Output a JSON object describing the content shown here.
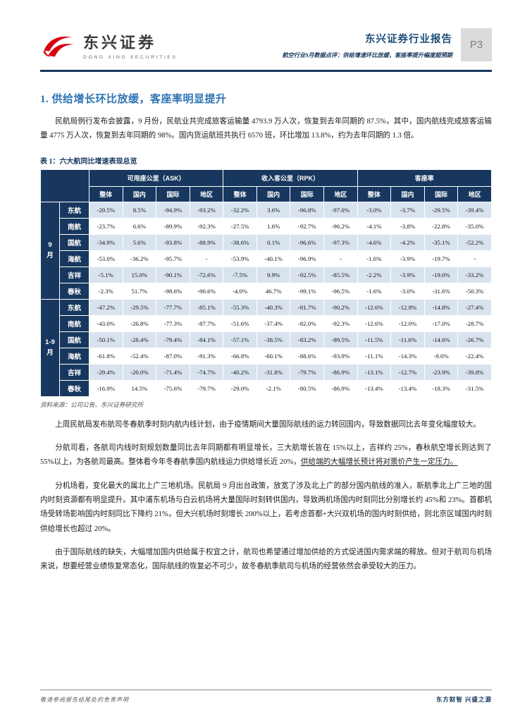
{
  "header": {
    "brand_cn": "东兴证券",
    "brand_en": "DONG XING SECURITIES",
    "report_type": "东兴证券行业报告",
    "report_subtitle": "航空行业9月数据点评：供给增速环比放缓，客座率提升幅度超预期",
    "page_number": "P3"
  },
  "section_heading": "1. 供给增长环比放缓，客座率明显提升",
  "paragraphs": {
    "p1": "民航局例行发布会披露，9 月份，民航业共完成旅客运输量 4793.9 万人次，恢复到去年同期的 87.5%，其中，国内航线完成旅客运输量 4775 万人次，恢复到去年同期的 98%。国内货运航班共执行 6570 班，环比增加 13.8%，约为去年同期的 1.3 倍。",
    "p2": "上周民航局发布航司冬春航季时刻内航内线计划，由于疫情期间大量国际航线的运力转回国内，导致数据同比去年变化幅度较大。",
    "p3_main": "分航司看，各航司内线时刻规划数量同比去年同期都有明显增长，三大航增长皆在 15%以上，吉祥约 25%，春秋航空增长则达到了 55%以上，为各航司最高。整体看今年冬春航季国内航线运力供给增长近 20%，",
    "p3_underline": "供给端的大幅增长预计将对票价产生一定压力。",
    "p4": "分机场看，变化最大的属北上广三地机场。民航局 9 月出台政策，放宽了涉及北上广的部分国内航线的准入，新航季北上广三地的国内时刻资源都有明显提升。其中浦东机场与白云机场将大量国际时刻转供国内，导致两机场国内时刻同比分别增长约 45%和 23%。首都机场受转场影响国内时刻同比下降约 21%，但大兴机场时刻增长 200%以上，若考虑首都+大兴双机场的国内时刻供给，则北京区域国内时刻供给增长也超过 20%。",
    "p5": "由于国际航线的缺失，大幅增加国内供给属于权宜之计，航司也希望通过增加供给的方式促进国内需求端的释放。但对于航司与机场来说，想要经营业绩恢复常态化，国际航线的恢复必不可少，故冬春航季航司与机场的经营依然会承受较大的压力。"
  },
  "table": {
    "title": "表 1：六大航同比增速表现总览",
    "column_groups": [
      "可用座公里（ASK）",
      "收入客公里（RPK）",
      "客座率"
    ],
    "sub_columns": [
      "整体",
      "国内",
      "国际",
      "地区"
    ],
    "row_groups": [
      {
        "label": "9\n月",
        "rows": [
          {
            "airline": "东航",
            "values": [
              "-29.5%",
              "8.5%",
              "-94.9%",
              "-93.2%",
              "-32.2%",
              "3.6%",
              "-96.8%",
              "-97.0%",
              "-3.0%",
              "-3.7%",
              "-29.5%",
              "-39.4%"
            ]
          },
          {
            "airline": "南航",
            "values": [
              "-23.7%",
              "6.6%",
              "-89.9%",
              "-92.3%",
              "-27.5%",
              "1.6%",
              "-92.7%",
              "-96.2%",
              "-4.1%",
              "-3.8%",
              "-22.8%",
              "-35.0%"
            ]
          },
          {
            "airline": "国航",
            "values": [
              "-34.9%",
              "5.6%",
              "-93.8%",
              "-88.9%",
              "-38.6%",
              "0.1%",
              "-96.6%",
              "-97.3%",
              "-4.6%",
              "-4.2%",
              "-35.1%",
              "-52.2%"
            ]
          },
          {
            "airline": "海航",
            "values": [
              "-53.0%",
              "-36.2%",
              "-95.7%",
              "-",
              "-53.9%",
              "-40.1%",
              "-96.9%",
              "-",
              "-1.6%",
              "-3.9%",
              "-19.7%",
              "-"
            ]
          },
          {
            "airline": "吉祥",
            "values": [
              "-5.1%",
              "15.0%",
              "-90.1%",
              "-72.6%",
              "-7.5%",
              "9.9%",
              "-92.5%",
              "-85.5%",
              "-2.2%",
              "-3.9%",
              "-19.0%",
              "-33.2%"
            ]
          },
          {
            "airline": "春秋",
            "values": [
              "-2.3%",
              "51.7%",
              "-98.6%",
              "-90.6%",
              "-4.0%",
              "46.7%",
              "-99.1%",
              "-96.5%",
              "-1.6%",
              "-3.0%",
              "-31.6%",
              "-50.3%"
            ]
          }
        ]
      },
      {
        "label": "1-9\n月",
        "rows": [
          {
            "airline": "东航",
            "values": [
              "-47.2%",
              "-29.5%",
              "-77.7%",
              "-85.1%",
              "-55.3%",
              "-40.3%",
              "-81.7%",
              "-90.2%",
              "-12.6%",
              "-12.8%",
              "-14.8%",
              "-27.4%"
            ]
          },
          {
            "airline": "南航",
            "values": [
              "-43.0%",
              "-26.8%",
              "-77.3%",
              "-87.7%",
              "-51.6%",
              "-37.4%",
              "-82.0%",
              "-92.3%",
              "-12.6%",
              "-12.0%",
              "-17.0%",
              "-28.7%"
            ]
          },
          {
            "airline": "国航",
            "values": [
              "-50.1%",
              "-28.4%",
              "-79.4%",
              "-84.1%",
              "-57.1%",
              "-38.5%",
              "-83.2%",
              "-89.5%",
              "-11.5%",
              "-11.6%",
              "-14.6%",
              "-26.7%"
            ]
          },
          {
            "airline": "海航",
            "values": [
              "-61.8%",
              "-52.4%",
              "-87.0%",
              "-91.3%",
              "-66.8%",
              "-60.1%",
              "-88.6%",
              "-93.9%",
              "-11.1%",
              "-14.3%",
              "-9.0%",
              "-22.4%"
            ]
          },
          {
            "airline": "吉祥",
            "values": [
              "-29.4%",
              "-20.0%",
              "-71.4%",
              "-74.7%",
              "-40.2%",
              "-31.8%",
              "-79.7%",
              "-86.9%",
              "-13.1%",
              "-12.7%",
              "-23.9%",
              "-39.8%"
            ]
          },
          {
            "airline": "春秋",
            "values": [
              "-16.9%",
              "14.5%",
              "-75.6%",
              "-79.7%",
              "-29.0%",
              "-2.1%",
              "-80.5%",
              "-86.9%",
              "-13.4%",
              "-13.4%",
              "-18.3%",
              "-31.5%"
            ]
          }
        ]
      }
    ],
    "source": "资料来源：公司公告、东兴证券研究所"
  },
  "footer": {
    "disclaimer": "敬请参阅报告结尾处的免责声明",
    "slogan": "东方财智  兴盛之源"
  },
  "colors": {
    "navy": "#17375E",
    "heading_blue": "#2E74B5",
    "row_tint": "#D9E3F0",
    "brand_red": "#D7000F"
  }
}
